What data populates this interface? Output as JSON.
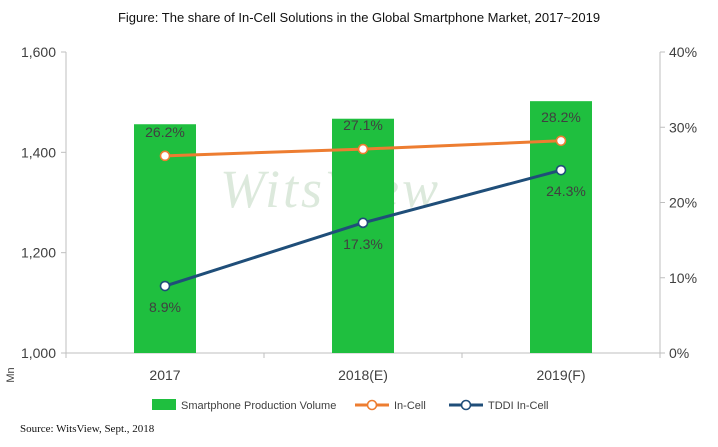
{
  "title": "Figure: The share of In-Cell Solutions in the Global Smartphone Market, 2017~2019",
  "source": "Source: WitsView, Sept., 2018",
  "watermark": "WitsView",
  "colors": {
    "bar": "#1fbf3f",
    "incell": "#ed7d31",
    "tddi": "#1f4e79",
    "axis": "#bfbfbf",
    "text": "#404040"
  },
  "chart_data": {
    "type": "bar",
    "categories": [
      "2017",
      "2018(E)",
      "2019(F)"
    ],
    "y_left": {
      "label": "Mn",
      "range": [
        1000,
        1600
      ],
      "ticks": [
        1000,
        1200,
        1400,
        1600
      ],
      "tick_labels": [
        "1,000",
        "1,200",
        "1,400",
        "1,600"
      ]
    },
    "y_right": {
      "range": [
        0,
        40
      ],
      "ticks": [
        0,
        10,
        20,
        30,
        40
      ],
      "tick_labels": [
        "0%",
        "10%",
        "20%",
        "30%",
        "40%"
      ]
    },
    "series": [
      {
        "name": "Smartphone Production Volume",
        "type": "bar",
        "axis": "left",
        "values": [
          1456,
          1467,
          1502
        ]
      },
      {
        "name": "In-Cell",
        "type": "line",
        "axis": "right",
        "values": [
          26.2,
          27.1,
          28.2
        ],
        "labels": [
          "26.2%",
          "27.1%",
          "28.2%"
        ]
      },
      {
        "name": "TDDI In-Cell",
        "type": "line",
        "axis": "right",
        "values": [
          8.9,
          17.3,
          24.3
        ],
        "labels": [
          "8.9%",
          "17.3%",
          "24.3%"
        ]
      }
    ],
    "legend_position": "bottom",
    "grid": false
  }
}
